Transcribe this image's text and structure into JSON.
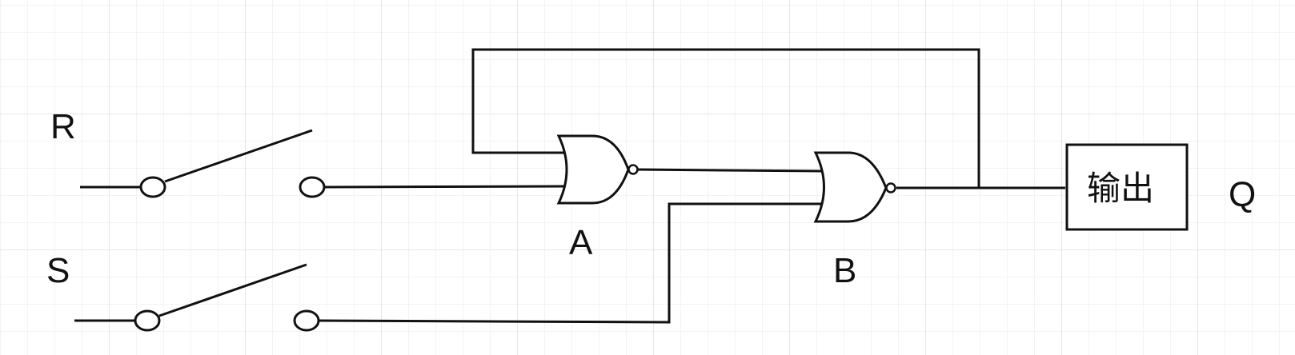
{
  "diagram": {
    "inputs": {
      "r_label": "R",
      "s_label": "S"
    },
    "gates": {
      "a_label": "A",
      "b_label": "B"
    },
    "output": {
      "box_label": "输出",
      "q_label": "Q"
    }
  }
}
